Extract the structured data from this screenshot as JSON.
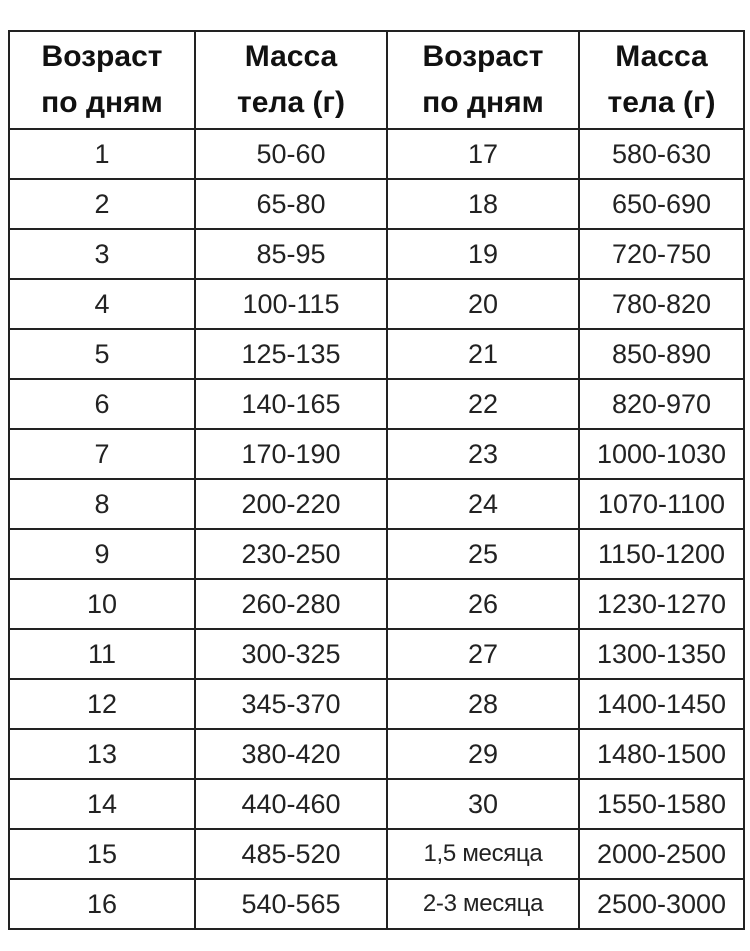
{
  "headers": [
    {
      "line1": "Возраст",
      "line2": "по дням"
    },
    {
      "line1": "Масса",
      "line2": "тела (г)"
    },
    {
      "line1": "Возраст",
      "line2": "по дням"
    },
    {
      "line1": "Масса",
      "line2": "тела (г)"
    }
  ],
  "rows": [
    [
      "1",
      "50-60",
      "17",
      "580-630"
    ],
    [
      "2",
      "65-80",
      "18",
      "650-690"
    ],
    [
      "3",
      "85-95",
      "19",
      "720-750"
    ],
    [
      "4",
      "100-115",
      "20",
      "780-820"
    ],
    [
      "5",
      "125-135",
      "21",
      "850-890"
    ],
    [
      "6",
      "140-165",
      "22",
      "820-970"
    ],
    [
      "7",
      "170-190",
      "23",
      "1000-1030"
    ],
    [
      "8",
      "200-220",
      "24",
      "1070-1100"
    ],
    [
      "9",
      "230-250",
      "25",
      "1150-1200"
    ],
    [
      "10",
      "260-280",
      "26",
      "1230-1270"
    ],
    [
      "11",
      "300-325",
      "27",
      "1300-1350"
    ],
    [
      "12",
      "345-370",
      "28",
      "1400-1450"
    ],
    [
      "13",
      "380-420",
      "29",
      "1480-1500"
    ],
    [
      "14",
      "440-460",
      "30",
      "1550-1580"
    ],
    [
      "15",
      "485-520",
      "1,5 месяца",
      "2000-2500"
    ],
    [
      "16",
      "540-565",
      "2-3 месяца",
      "2500-3000"
    ]
  ]
}
